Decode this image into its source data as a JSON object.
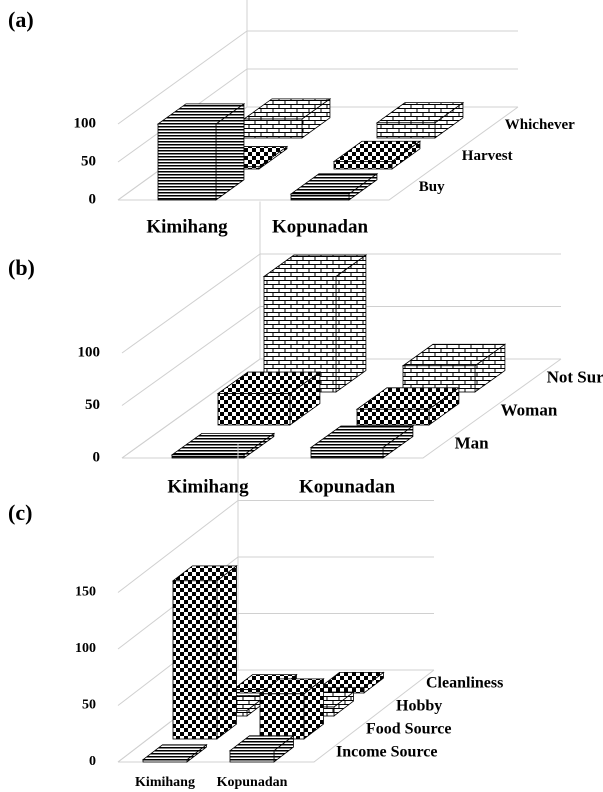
{
  "chart_data": [
    {
      "type": "bar3d",
      "title": "(a)",
      "categories": [
        "Kimihang",
        "Kopunadan"
      ],
      "series": [
        {
          "name": "Buy",
          "color": "#000000",
          "pattern": "lines",
          "values": [
            100,
            8
          ]
        },
        {
          "name": "Harvest",
          "color": "#000000",
          "pattern": "checker",
          "values": [
            3,
            10
          ]
        },
        {
          "name": "Whichever",
          "color": "#000000",
          "pattern": "brick",
          "values": [
            25,
            20
          ]
        }
      ],
      "ylim": [
        0,
        150
      ],
      "yticks": [
        0,
        50,
        100
      ],
      "grid": true
    },
    {
      "type": "bar3d",
      "title": "(b)",
      "categories": [
        "Kimihang",
        "Kopunadan"
      ],
      "series": [
        {
          "name": "Man",
          "color": "#000000",
          "pattern": "lines",
          "values": [
            3,
            10
          ]
        },
        {
          "name": "Woman",
          "color": "#000000",
          "pattern": "checker",
          "values": [
            30,
            15
          ]
        },
        {
          "name": "Not Sure",
          "color": "#000000",
          "pattern": "brick",
          "values": [
            110,
            25
          ]
        }
      ],
      "ylim": [
        0,
        150
      ],
      "yticks": [
        0,
        50,
        100
      ],
      "grid": true
    },
    {
      "type": "bar3d",
      "title": "(c)",
      "categories": [
        "Kimihang",
        "Kopunadan"
      ],
      "series": [
        {
          "name": "Income Source",
          "color": "#000000",
          "pattern": "lines",
          "values": [
            2,
            10
          ]
        },
        {
          "name": "Food Source",
          "color": "#000000",
          "pattern": "checker",
          "values": [
            140,
            40
          ]
        },
        {
          "name": "Hobby",
          "color": "#000000",
          "pattern": "brick",
          "values": [
            5,
            8
          ]
        },
        {
          "name": "Cleanliness",
          "color": "#000000",
          "pattern": "checker",
          "values": [
            3,
            5
          ]
        }
      ],
      "ylim": [
        0,
        200
      ],
      "yticks": [
        0,
        50,
        100,
        150
      ],
      "grid": true
    }
  ]
}
